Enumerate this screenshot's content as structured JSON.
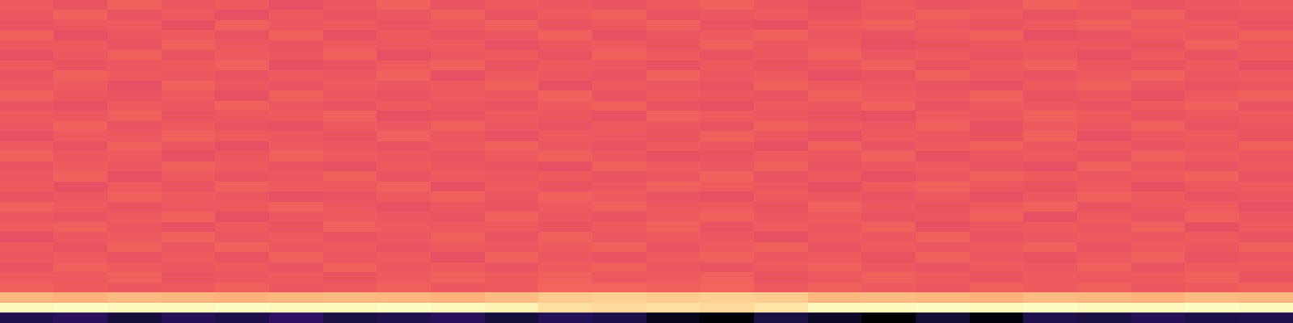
{
  "chart_data": {
    "type": "heatmap",
    "color": "magma",
    "tick_labels": false,
    "cells": [
      [
        66,
        64,
        67,
        65,
        66,
        63,
        65,
        67,
        64,
        66,
        65,
        64,
        66,
        67,
        65,
        63,
        66,
        64,
        65,
        67,
        66,
        64,
        65,
        66
      ],
      [
        65,
        67,
        64,
        66,
        63,
        66,
        64,
        65,
        67,
        64,
        66,
        67,
        64,
        65,
        66,
        64,
        65,
        67,
        66,
        64,
        65,
        67,
        64,
        65
      ],
      [
        64,
        65,
        66,
        63,
        67,
        65,
        66,
        64,
        65,
        67,
        64,
        65,
        67,
        64,
        63,
        66,
        67,
        65,
        64,
        66,
        67,
        65,
        66,
        64
      ],
      [
        67,
        63,
        65,
        66,
        64,
        67,
        63,
        66,
        64,
        65,
        67,
        63,
        65,
        66,
        67,
        65,
        64,
        66,
        67,
        63,
        64,
        66,
        65,
        67
      ],
      [
        65,
        66,
        64,
        67,
        65,
        64,
        66,
        65,
        66,
        63,
        65,
        66,
        64,
        67,
        65,
        66,
        63,
        64,
        65,
        66,
        65,
        64,
        67,
        65
      ],
      [
        63,
        65,
        67,
        64,
        66,
        65,
        67,
        63,
        65,
        66,
        64,
        67,
        66,
        64,
        65,
        67,
        65,
        66,
        64,
        65,
        63,
        66,
        64,
        66
      ],
      [
        66,
        64,
        65,
        66,
        67,
        63,
        64,
        66,
        67,
        64,
        66,
        65,
        63,
        66,
        64,
        65,
        67,
        64,
        66,
        67,
        65,
        64,
        66,
        63
      ],
      [
        64,
        67,
        66,
        65,
        64,
        66,
        65,
        67,
        63,
        66,
        65,
        64,
        67,
        65,
        66,
        63,
        64,
        67,
        65,
        64,
        66,
        67,
        65,
        66
      ],
      [
        65,
        66,
        63,
        67,
        65,
        64,
        66,
        65,
        66,
        67,
        63,
        66,
        65,
        64,
        67,
        66,
        65,
        64,
        63,
        66,
        67,
        65,
        64,
        65
      ],
      [
        67,
        65,
        64,
        66,
        63,
        67,
        65,
        64,
        66,
        65,
        67,
        64,
        66,
        65,
        64,
        67,
        66,
        65,
        67,
        64,
        65,
        63,
        66,
        67
      ],
      [
        64,
        63,
        66,
        65,
        67,
        65,
        64,
        66,
        65,
        64,
        66,
        67,
        64,
        63,
        66,
        65,
        67,
        64,
        66,
        65,
        64,
        66,
        67,
        64
      ],
      [
        66,
        65,
        67,
        64,
        65,
        66,
        67,
        63,
        64,
        66,
        65,
        63,
        67,
        66,
        65,
        64,
        63,
        66,
        65,
        67,
        66,
        64,
        65,
        66
      ],
      [
        65,
        67,
        64,
        66,
        64,
        63,
        66,
        65,
        67,
        65,
        64,
        66,
        65,
        64,
        67,
        66,
        65,
        67,
        63,
        66,
        65,
        67,
        64,
        65
      ],
      [
        63,
        66,
        65,
        67,
        66,
        65,
        64,
        67,
        65,
        63,
        66,
        65,
        64,
        67,
        65,
        63,
        66,
        65,
        64,
        67,
        63,
        65,
        66,
        64
      ],
      [
        66,
        64,
        67,
        65,
        63,
        66,
        65,
        64,
        66,
        67,
        65,
        64,
        66,
        65,
        63,
        67,
        64,
        66,
        67,
        65,
        66,
        64,
        65,
        67
      ],
      [
        67,
        65,
        66,
        63,
        65,
        67,
        66,
        65,
        64,
        66,
        67,
        65,
        63,
        64,
        66,
        65,
        67,
        63,
        65,
        66,
        64,
        67,
        66,
        65
      ],
      [
        64,
        66,
        65,
        67,
        66,
        64,
        63,
        66,
        65,
        64,
        63,
        67,
        66,
        65,
        67,
        64,
        65,
        66,
        64,
        63,
        67,
        65,
        64,
        66
      ],
      [
        65,
        67,
        63,
        66,
        64,
        65,
        67,
        64,
        66,
        65,
        66,
        64,
        65,
        67,
        64,
        66,
        63,
        65,
        67,
        66,
        65,
        66,
        67,
        64
      ],
      [
        66,
        63,
        66,
        64,
        67,
        66,
        65,
        67,
        63,
        66,
        64,
        65,
        67,
        66,
        65,
        63,
        66,
        67,
        65,
        64,
        66,
        63,
        65,
        66
      ],
      [
        64,
        65,
        67,
        66,
        65,
        63,
        64,
        66,
        67,
        65,
        67,
        66,
        64,
        63,
        66,
        65,
        64,
        66,
        63,
        65,
        67,
        66,
        64,
        65
      ],
      [
        67,
        66,
        64,
        65,
        66,
        67,
        65,
        63,
        65,
        64,
        66,
        67,
        65,
        66,
        64,
        67,
        65,
        64,
        66,
        67,
        64,
        65,
        66,
        63
      ],
      [
        65,
        64,
        66,
        67,
        63,
        65,
        66,
        65,
        64,
        67,
        65,
        64,
        66,
        67,
        65,
        66,
        64,
        65,
        67,
        63,
        66,
        64,
        67,
        65
      ],
      [
        66,
        67,
        65,
        63,
        66,
        64,
        67,
        66,
        65,
        66,
        64,
        66,
        67,
        64,
        66,
        65,
        67,
        63,
        65,
        66,
        65,
        67,
        63,
        66
      ],
      [
        63,
        65,
        66,
        67,
        65,
        66,
        64,
        65,
        67,
        64,
        67,
        65,
        66,
        65,
        63,
        66,
        65,
        67,
        64,
        65,
        66,
        65,
        66,
        64
      ],
      [
        66,
        64,
        67,
        65,
        67,
        65,
        66,
        64,
        66,
        65,
        66,
        67,
        64,
        66,
        67,
        64,
        66,
        65,
        66,
        67,
        64,
        66,
        65,
        67
      ],
      [
        65,
        66,
        64,
        66,
        64,
        67,
        65,
        66,
        63,
        67,
        65,
        64,
        66,
        67,
        65,
        66,
        64,
        67,
        65,
        64,
        66,
        67,
        64,
        65
      ],
      [
        64,
        67,
        66,
        65,
        66,
        64,
        67,
        65,
        66,
        64,
        66,
        67,
        65,
        64,
        66,
        67,
        65,
        64,
        66,
        65,
        67,
        64,
        66,
        66
      ],
      [
        66,
        65,
        67,
        64,
        65,
        66,
        64,
        66,
        67,
        66,
        67,
        65,
        66,
        67,
        64,
        65,
        67,
        66,
        64,
        66,
        65,
        66,
        67,
        64
      ],
      [
        67,
        66,
        65,
        66,
        67,
        65,
        66,
        67,
        65,
        66,
        68,
        68,
        67,
        68,
        66,
        67,
        66,
        65,
        67,
        66,
        67,
        65,
        66,
        67
      ],
      [
        84,
        83,
        85,
        84,
        83,
        84,
        85,
        84,
        83,
        85,
        88,
        89,
        88,
        89,
        88,
        84,
        85,
        84,
        83,
        85,
        84,
        83,
        85,
        84
      ],
      [
        97,
        98,
        97,
        97,
        98,
        97,
        97,
        98,
        97,
        96,
        92,
        91,
        92,
        91,
        93,
        97,
        97,
        98,
        97,
        98,
        97,
        97,
        98,
        97
      ],
      [
        18,
        20,
        15,
        19,
        17,
        21,
        16,
        18,
        20,
        15,
        19,
        17,
        10,
        6,
        16,
        12,
        5,
        14,
        7,
        18,
        16,
        19,
        17,
        18
      ]
    ]
  }
}
